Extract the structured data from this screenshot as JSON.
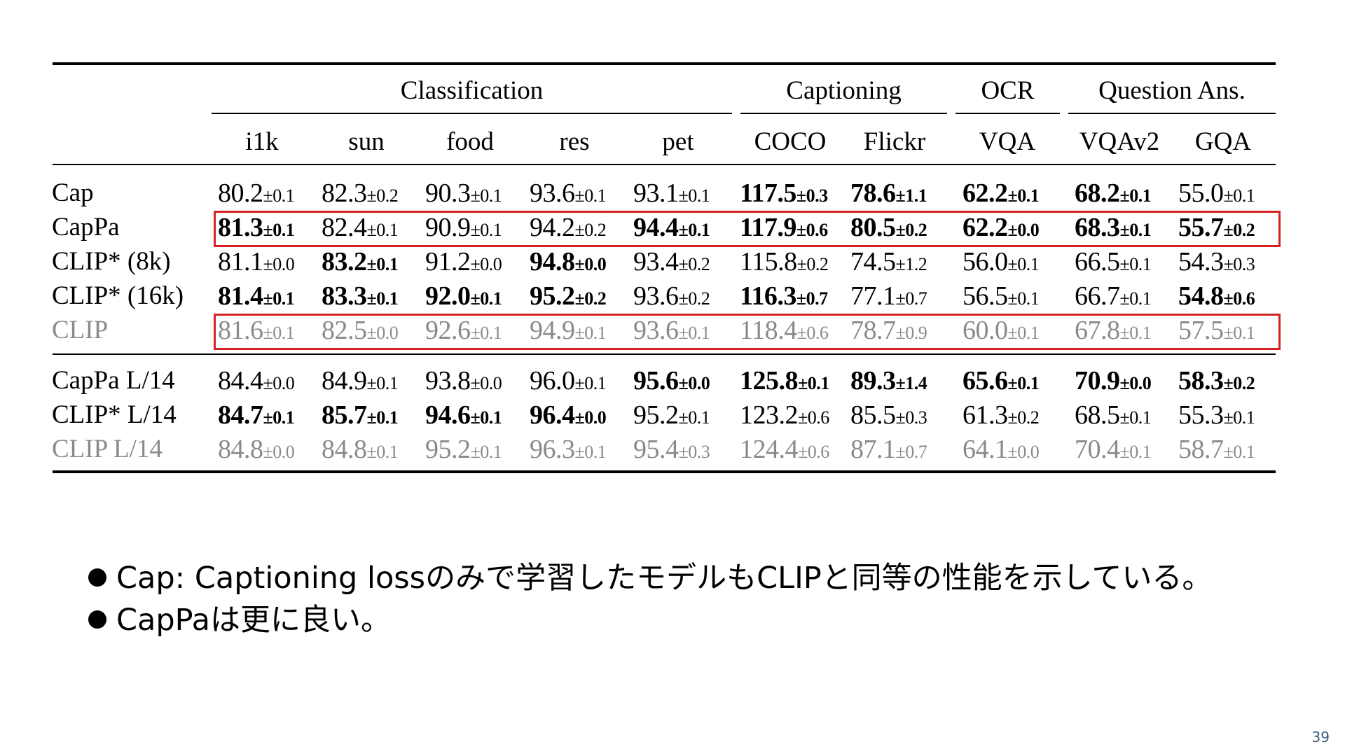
{
  "table": {
    "groups": [
      {
        "label": "Classification"
      },
      {
        "label": "Captioning"
      },
      {
        "label": "OCR"
      },
      {
        "label": "Question Ans."
      }
    ],
    "columns": [
      "i1k",
      "sun",
      "food",
      "res",
      "pet",
      "COCO",
      "Flickr",
      "VQA",
      "VQAv2",
      "GQA"
    ],
    "rows": [
      {
        "label": "Cap",
        "style": "normal",
        "cells": [
          {
            "v": "80.2",
            "sd": "±0.1",
            "b": false
          },
          {
            "v": "82.3",
            "sd": "±0.2",
            "b": false
          },
          {
            "v": "90.3",
            "sd": "±0.1",
            "b": false
          },
          {
            "v": "93.6",
            "sd": "±0.1",
            "b": false
          },
          {
            "v": "93.1",
            "sd": "±0.1",
            "b": false
          },
          {
            "v": "117.5",
            "sd": "±0.3",
            "b": true
          },
          {
            "v": "78.6",
            "sd": "±1.1",
            "b": true
          },
          {
            "v": "62.2",
            "sd": "±0.1",
            "b": true
          },
          {
            "v": "68.2",
            "sd": "±0.1",
            "b": true
          },
          {
            "v": "55.0",
            "sd": "±0.1",
            "b": false
          }
        ]
      },
      {
        "label": "CapPa",
        "style": "normal",
        "cells": [
          {
            "v": "81.3",
            "sd": "±0.1",
            "b": true
          },
          {
            "v": "82.4",
            "sd": "±0.1",
            "b": false
          },
          {
            "v": "90.9",
            "sd": "±0.1",
            "b": false
          },
          {
            "v": "94.2",
            "sd": "±0.2",
            "b": false
          },
          {
            "v": "94.4",
            "sd": "±0.1",
            "b": true
          },
          {
            "v": "117.9",
            "sd": "±0.6",
            "b": true
          },
          {
            "v": "80.5",
            "sd": "±0.2",
            "b": true
          },
          {
            "v": "62.2",
            "sd": "±0.0",
            "b": true
          },
          {
            "v": "68.3",
            "sd": "±0.1",
            "b": true
          },
          {
            "v": "55.7",
            "sd": "±0.2",
            "b": true
          }
        ]
      },
      {
        "label": "CLIP* (8k)",
        "style": "normal",
        "cells": [
          {
            "v": "81.1",
            "sd": "±0.0",
            "b": false
          },
          {
            "v": "83.2",
            "sd": "±0.1",
            "b": true
          },
          {
            "v": "91.2",
            "sd": "±0.0",
            "b": false
          },
          {
            "v": "94.8",
            "sd": "±0.0",
            "b": true
          },
          {
            "v": "93.4",
            "sd": "±0.2",
            "b": false
          },
          {
            "v": "115.8",
            "sd": "±0.2",
            "b": false
          },
          {
            "v": "74.5",
            "sd": "±1.2",
            "b": false
          },
          {
            "v": "56.0",
            "sd": "±0.1",
            "b": false
          },
          {
            "v": "66.5",
            "sd": "±0.1",
            "b": false
          },
          {
            "v": "54.3",
            "sd": "±0.3",
            "b": false
          }
        ]
      },
      {
        "label": "CLIP* (16k)",
        "style": "normal",
        "cells": [
          {
            "v": "81.4",
            "sd": "±0.1",
            "b": true
          },
          {
            "v": "83.3",
            "sd": "±0.1",
            "b": true
          },
          {
            "v": "92.0",
            "sd": "±0.1",
            "b": true
          },
          {
            "v": "95.2",
            "sd": "±0.2",
            "b": true
          },
          {
            "v": "93.6",
            "sd": "±0.2",
            "b": false
          },
          {
            "v": "116.3",
            "sd": "±0.7",
            "b": true
          },
          {
            "v": "77.1",
            "sd": "±0.7",
            "b": false
          },
          {
            "v": "56.5",
            "sd": "±0.1",
            "b": false
          },
          {
            "v": "66.7",
            "sd": "±0.1",
            "b": false
          },
          {
            "v": "54.8",
            "sd": "±0.6",
            "b": true
          }
        ]
      },
      {
        "label": "CLIP",
        "style": "gray",
        "cells": [
          {
            "v": "81.6",
            "sd": "±0.1",
            "b": false
          },
          {
            "v": "82.5",
            "sd": "±0.0",
            "b": false
          },
          {
            "v": "92.6",
            "sd": "±0.1",
            "b": false
          },
          {
            "v": "94.9",
            "sd": "±0.1",
            "b": false
          },
          {
            "v": "93.6",
            "sd": "±0.1",
            "b": false
          },
          {
            "v": "118.4",
            "sd": "±0.6",
            "b": false
          },
          {
            "v": "78.7",
            "sd": "±0.9",
            "b": false
          },
          {
            "v": "60.0",
            "sd": "±0.1",
            "b": false
          },
          {
            "v": "67.8",
            "sd": "±0.1",
            "b": false
          },
          {
            "v": "57.5",
            "sd": "±0.1",
            "b": false
          }
        ]
      },
      {
        "label": "CapPa L/14",
        "style": "normal",
        "cells": [
          {
            "v": "84.4",
            "sd": "±0.0",
            "b": false
          },
          {
            "v": "84.9",
            "sd": "±0.1",
            "b": false
          },
          {
            "v": "93.8",
            "sd": "±0.0",
            "b": false
          },
          {
            "v": "96.0",
            "sd": "±0.1",
            "b": false
          },
          {
            "v": "95.6",
            "sd": "±0.0",
            "b": true
          },
          {
            "v": "125.8",
            "sd": "±0.1",
            "b": true
          },
          {
            "v": "89.3",
            "sd": "±1.4",
            "b": true
          },
          {
            "v": "65.6",
            "sd": "±0.1",
            "b": true
          },
          {
            "v": "70.9",
            "sd": "±0.0",
            "b": true
          },
          {
            "v": "58.3",
            "sd": "±0.2",
            "b": true
          }
        ]
      },
      {
        "label": "CLIP* L/14",
        "style": "normal",
        "cells": [
          {
            "v": "84.7",
            "sd": "±0.1",
            "b": true
          },
          {
            "v": "85.7",
            "sd": "±0.1",
            "b": true
          },
          {
            "v": "94.6",
            "sd": "±0.1",
            "b": true
          },
          {
            "v": "96.4",
            "sd": "±0.0",
            "b": true
          },
          {
            "v": "95.2",
            "sd": "±0.1",
            "b": false
          },
          {
            "v": "123.2",
            "sd": "±0.6",
            "b": false
          },
          {
            "v": "85.5",
            "sd": "±0.3",
            "b": false
          },
          {
            "v": "61.3",
            "sd": "±0.2",
            "b": false
          },
          {
            "v": "68.5",
            "sd": "±0.1",
            "b": false
          },
          {
            "v": "55.3",
            "sd": "±0.1",
            "b": false
          }
        ]
      },
      {
        "label": "CLIP L/14",
        "style": "gray",
        "cells": [
          {
            "v": "84.8",
            "sd": "±0.0",
            "b": false
          },
          {
            "v": "84.8",
            "sd": "±0.1",
            "b": false
          },
          {
            "v": "95.2",
            "sd": "±0.1",
            "b": false
          },
          {
            "v": "96.3",
            "sd": "±0.1",
            "b": false
          },
          {
            "v": "95.4",
            "sd": "±0.3",
            "b": false
          },
          {
            "v": "124.4",
            "sd": "±0.6",
            "b": false
          },
          {
            "v": "87.1",
            "sd": "±0.7",
            "b": false
          },
          {
            "v": "64.1",
            "sd": "±0.0",
            "b": false
          },
          {
            "v": "70.4",
            "sd": "±0.1",
            "b": false
          },
          {
            "v": "58.7",
            "sd": "±0.1",
            "b": false
          }
        ]
      }
    ],
    "highlighted_rows": [
      "CapPa",
      "CLIP"
    ],
    "highlight_color": "#d32222",
    "gray_color": "#8a8a8a"
  },
  "bullets": [
    "Cap: Captioning lossのみで学習したモデルもCLIPと同等の性能を示している。",
    "CapPaは更に良い。"
  ],
  "page_number": "39"
}
